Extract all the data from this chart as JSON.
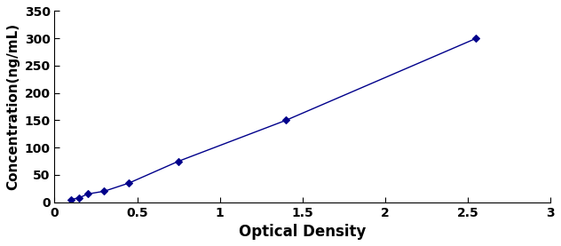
{
  "x": [
    0.1,
    0.15,
    0.2,
    0.3,
    0.45,
    0.75,
    1.4,
    2.55
  ],
  "y": [
    5,
    8,
    15,
    20,
    35,
    75,
    150,
    300
  ],
  "line_color": "#00008B",
  "marker_color": "#00008B",
  "marker": "D",
  "marker_size": 4,
  "line_width": 1.0,
  "line_style": "-",
  "xlabel": "Optical Density",
  "ylabel": "Concentration(ng/mL)",
  "xlim": [
    0,
    3
  ],
  "ylim": [
    0,
    350
  ],
  "xticks": [
    0,
    0.5,
    1,
    1.5,
    2,
    2.5,
    3
  ],
  "xticklabels": [
    "0",
    "0.5",
    "1",
    "1.5",
    "2",
    "2.5",
    "3"
  ],
  "yticks": [
    0,
    50,
    100,
    150,
    200,
    250,
    300,
    350
  ],
  "yticklabels": [
    "0",
    "50",
    "100",
    "150",
    "200",
    "250",
    "300",
    "350"
  ],
  "xlabel_fontsize": 12,
  "ylabel_fontsize": 11,
  "tick_fontsize": 10,
  "background_color": "#ffffff"
}
